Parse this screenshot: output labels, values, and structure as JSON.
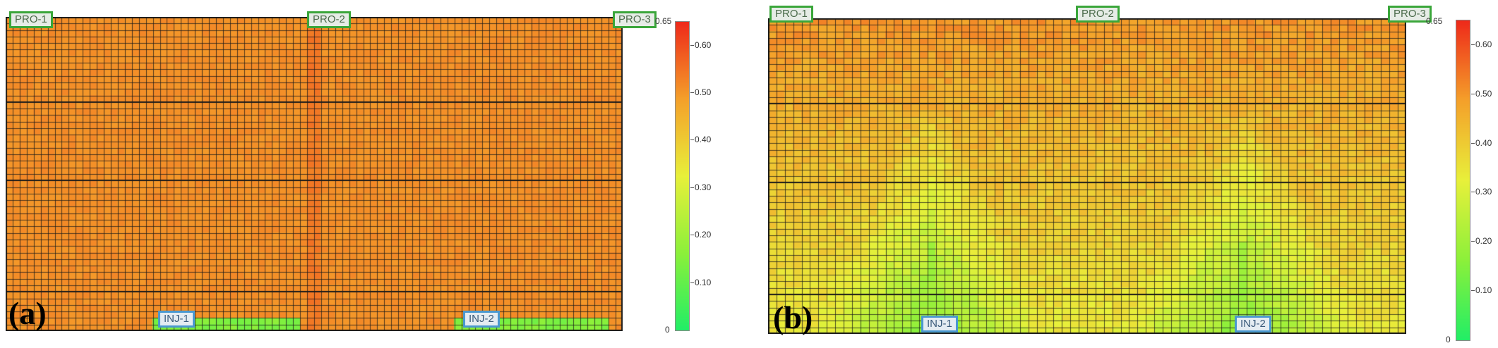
{
  "panels": [
    {
      "label": "(a)",
      "wells": {
        "producers": [
          "PRO-1",
          "PRO-2",
          "PRO-3"
        ],
        "injectors": [
          "INJ-1",
          "INJ-2"
        ]
      },
      "colorbar": {
        "min_label": "0",
        "max_label": "0.65",
        "ticks": [
          "0.60",
          "0.50",
          "0.40",
          "0.30",
          "0.20",
          "0.10"
        ],
        "tick_values": [
          0.6,
          0.5,
          0.4,
          0.3,
          0.2,
          0.1
        ],
        "range": [
          0,
          0.65
        ]
      },
      "field": {
        "base_value": 0.51,
        "low_value": 0.12
      }
    },
    {
      "label": "(b)",
      "wells": {
        "producers": [
          "PRO-1",
          "PRO-2",
          "PRO-3"
        ],
        "injectors": [
          "INJ-1",
          "INJ-2"
        ]
      },
      "colorbar": {
        "min_label": "0",
        "max_label": "0.65",
        "ticks": [
          "0.60",
          "0.50",
          "0.40",
          "0.30",
          "0.20",
          "0.10"
        ],
        "tick_values": [
          0.6,
          0.5,
          0.4,
          0.3,
          0.2,
          0.1
        ],
        "range": [
          0,
          0.65
        ]
      },
      "field": {
        "top_value": 0.5,
        "bottom_value": 0.34,
        "low_value": 0.18
      }
    }
  ],
  "colors": {
    "colormap": [
      "#22ee66",
      "#8cf03a",
      "#e8f03a",
      "#f4a02a",
      "#ee2a1a"
    ],
    "producer_border": "#3aa63a",
    "injector_border": "#4a98d0",
    "grid_line": "#1a1a1a"
  }
}
